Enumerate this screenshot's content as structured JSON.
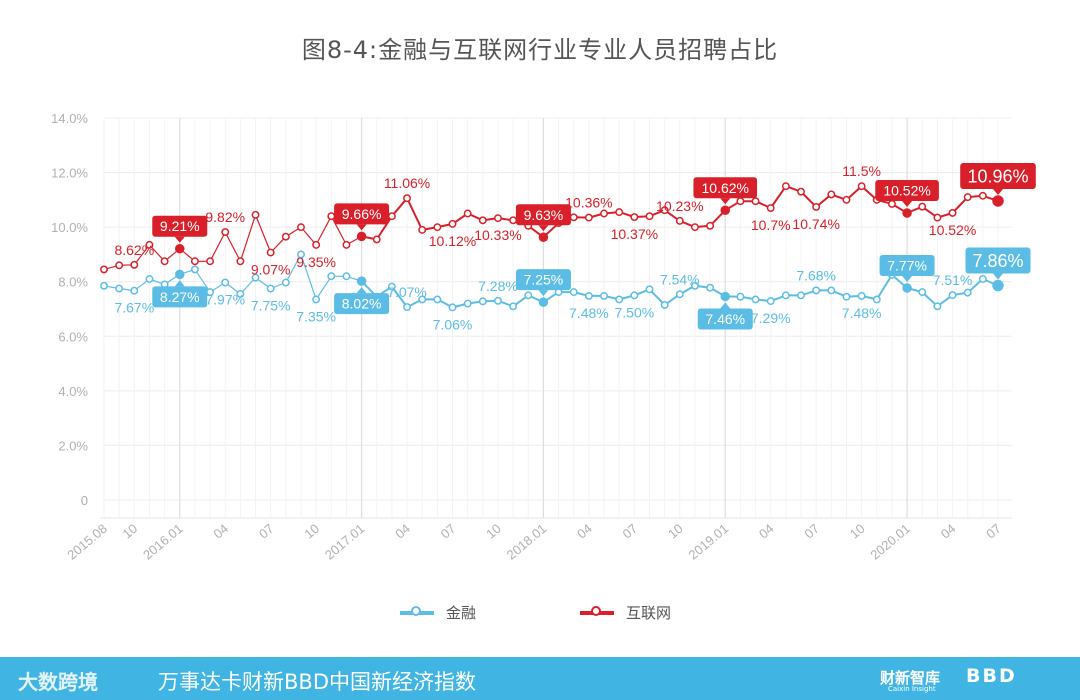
{
  "title": "图8-4:金融与互联网行业专业人员招聘占比",
  "colors": {
    "finance": "#5bbde6",
    "internet": "#d9202a",
    "grid": "#ececec",
    "axis_text": "#b0b0b0"
  },
  "chart_data": {
    "type": "line",
    "title": "图8-4:金融与互联网行业专业人员招聘占比",
    "ylim": [
      0,
      14
    ],
    "y_ticks": [
      "0",
      "2.0%",
      "4.0%",
      "6.0%",
      "8.0%",
      "10.0%",
      "12.0%",
      "14.0%"
    ],
    "x_tick_labels": [
      "2015.08",
      "10",
      "2016.01",
      "04",
      "07",
      "10",
      "2017.01",
      "04",
      "07",
      "10",
      "2018.01",
      "04",
      "07",
      "10",
      "2019.01",
      "04",
      "07",
      "10",
      "2020.01",
      "04",
      "07"
    ],
    "x_tick_index": [
      0,
      2,
      5,
      8,
      11,
      14,
      17,
      20,
      23,
      26,
      29,
      32,
      35,
      38,
      41,
      44,
      47,
      50,
      53,
      56,
      59
    ],
    "x": [
      "2015.08",
      "2015.09",
      "2015.10",
      "2015.11",
      "2015.12",
      "2016.01",
      "2016.02",
      "2016.03",
      "2016.04",
      "2016.05",
      "2016.06",
      "2016.07",
      "2016.08",
      "2016.09",
      "2016.10",
      "2016.11",
      "2016.12",
      "2017.01",
      "2017.02",
      "2017.03",
      "2017.04",
      "2017.05",
      "2017.06",
      "2017.07",
      "2017.08",
      "2017.09",
      "2017.10",
      "2017.11",
      "2017.12",
      "2018.01",
      "2018.02",
      "2018.03",
      "2018.04",
      "2018.05",
      "2018.06",
      "2018.07",
      "2018.08",
      "2018.09",
      "2018.10",
      "2018.11",
      "2018.12",
      "2019.01",
      "2019.02",
      "2019.03",
      "2019.04",
      "2019.05",
      "2019.06",
      "2019.07",
      "2019.08",
      "2019.09",
      "2019.10",
      "2019.11",
      "2019.12",
      "2020.01",
      "2020.02",
      "2020.03",
      "2020.04",
      "2020.05",
      "2020.06",
      "2020.07"
    ],
    "grid": true,
    "legend_position": "bottom-center",
    "series": [
      {
        "name": "金融",
        "color": "#5bbde6",
        "values": [
          7.85,
          7.75,
          7.67,
          8.1,
          7.9,
          8.27,
          8.45,
          7.62,
          7.97,
          7.55,
          8.15,
          7.75,
          7.97,
          9.0,
          7.35,
          8.2,
          8.2,
          8.02,
          7.45,
          7.82,
          7.07,
          7.35,
          7.35,
          7.06,
          7.2,
          7.28,
          7.3,
          7.1,
          7.5,
          7.25,
          7.62,
          7.62,
          7.48,
          7.48,
          7.35,
          7.5,
          7.72,
          7.15,
          7.54,
          7.85,
          7.78,
          7.46,
          7.45,
          7.35,
          7.29,
          7.5,
          7.5,
          7.68,
          7.68,
          7.45,
          7.48,
          7.35,
          8.25,
          7.77,
          7.62,
          7.1,
          7.51,
          7.6,
          8.1,
          7.86
        ]
      },
      {
        "name": "互联网",
        "color": "#d9202a",
        "values": [
          8.45,
          8.6,
          8.62,
          9.35,
          8.75,
          9.21,
          8.75,
          8.75,
          9.82,
          8.75,
          10.45,
          9.07,
          9.65,
          10.0,
          9.35,
          10.4,
          9.35,
          9.66,
          9.55,
          10.4,
          11.06,
          9.9,
          10.0,
          10.12,
          10.5,
          10.25,
          10.33,
          10.25,
          10.05,
          9.63,
          10.15,
          10.36,
          10.35,
          10.5,
          10.55,
          10.37,
          10.4,
          10.62,
          10.23,
          10.0,
          10.05,
          10.62,
          10.95,
          10.95,
          10.7,
          11.5,
          11.3,
          10.74,
          11.2,
          11.0,
          11.5,
          11.0,
          10.85,
          10.52,
          10.75,
          10.35,
          10.52,
          11.1,
          11.15,
          10.96
        ]
      }
    ],
    "data_labels": [
      {
        "series": 0,
        "index": 2,
        "text": "7.67%"
      },
      {
        "series": 0,
        "index": 5,
        "text": "8.27%",
        "boxed": true
      },
      {
        "series": 0,
        "index": 8,
        "text": "7.97%"
      },
      {
        "series": 0,
        "index": 11,
        "text": "7.75%"
      },
      {
        "series": 0,
        "index": 14,
        "text": "7.35%"
      },
      {
        "series": 0,
        "index": 17,
        "text": "8.02%",
        "boxed": true
      },
      {
        "series": 0,
        "index": 20,
        "text": "7.07%"
      },
      {
        "series": 0,
        "index": 23,
        "text": "7.06%"
      },
      {
        "series": 0,
        "index": 26,
        "text": "7.28%"
      },
      {
        "series": 0,
        "index": 29,
        "text": "7.25%",
        "boxed": true
      },
      {
        "series": 0,
        "index": 32,
        "text": "7.48%"
      },
      {
        "series": 0,
        "index": 35,
        "text": "7.50%"
      },
      {
        "series": 0,
        "index": 38,
        "text": "7.54%"
      },
      {
        "series": 0,
        "index": 41,
        "text": "7.46%",
        "boxed": true
      },
      {
        "series": 0,
        "index": 44,
        "text": "7.29%"
      },
      {
        "series": 0,
        "index": 47,
        "text": "7.68%"
      },
      {
        "series": 0,
        "index": 50,
        "text": "7.48%"
      },
      {
        "series": 0,
        "index": 53,
        "text": "7.77%",
        "boxed": true
      },
      {
        "series": 0,
        "index": 56,
        "text": "7.51%"
      },
      {
        "series": 0,
        "index": 59,
        "text": "7.86%",
        "boxed": true,
        "large": true
      },
      {
        "series": 1,
        "index": 2,
        "text": "8.62%"
      },
      {
        "series": 1,
        "index": 5,
        "text": "9.21%",
        "boxed": true
      },
      {
        "series": 1,
        "index": 8,
        "text": "9.82%"
      },
      {
        "series": 1,
        "index": 11,
        "text": "9.07%"
      },
      {
        "series": 1,
        "index": 14,
        "text": "9.35%"
      },
      {
        "series": 1,
        "index": 17,
        "text": "9.66%",
        "boxed": true
      },
      {
        "series": 1,
        "index": 20,
        "text": "11.06%"
      },
      {
        "series": 1,
        "index": 23,
        "text": "10.12%"
      },
      {
        "series": 1,
        "index": 26,
        "text": "10.33%"
      },
      {
        "series": 1,
        "index": 29,
        "text": "9.63%",
        "boxed": true
      },
      {
        "series": 1,
        "index": 32,
        "text": "10.36%"
      },
      {
        "series": 1,
        "index": 35,
        "text": "10.37%"
      },
      {
        "series": 1,
        "index": 38,
        "text": "10.23%"
      },
      {
        "series": 1,
        "index": 41,
        "text": "10.62%",
        "boxed": true
      },
      {
        "series": 1,
        "index": 44,
        "text": "10.7%"
      },
      {
        "series": 1,
        "index": 47,
        "text": "10.74%"
      },
      {
        "series": 1,
        "index": 50,
        "text": "11.5%"
      },
      {
        "series": 1,
        "index": 53,
        "text": "10.52%",
        "boxed": true
      },
      {
        "series": 1,
        "index": 56,
        "text": "10.52%"
      },
      {
        "series": 1,
        "index": 59,
        "text": "10.96%",
        "boxed": true,
        "large": true
      }
    ]
  },
  "legend": {
    "items": [
      {
        "label": "金融"
      },
      {
        "label": "互联网"
      }
    ]
  },
  "footer": {
    "logo": "大数跨境",
    "text": "万事达卡财新BBD中国新经济指数",
    "brand1": "财新智库",
    "brand1_sub": "Caixin Insight",
    "brand2": "BBD"
  }
}
